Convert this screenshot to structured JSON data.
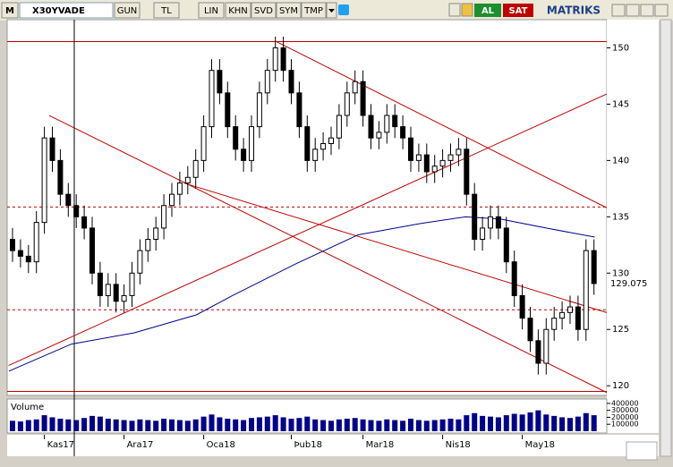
{
  "toolbar": {
    "menu": "M",
    "symbol": "X30YVADE",
    "buttons": [
      "GUN",
      "TL",
      "LIN",
      "KHN",
      "SVD",
      "SYM",
      "TMP"
    ],
    "buy": "AL",
    "sell": "SAT",
    "brand": "MATRIKS"
  },
  "chart_data": {
    "type": "candlestick",
    "candle_color": "#000000",
    "categories": [
      null,
      null,
      null,
      null,
      "Kas17",
      null,
      null,
      null,
      null,
      null,
      null,
      null,
      null,
      null,
      "Ara17",
      null,
      null,
      null,
      null,
      null,
      null,
      null,
      null,
      null,
      "Oca18",
      null,
      null,
      null,
      null,
      null,
      null,
      null,
      null,
      null,
      null,
      "Þub18",
      null,
      null,
      null,
      null,
      null,
      null,
      null,
      null,
      "Mar18",
      null,
      null,
      null,
      null,
      null,
      null,
      null,
      null,
      null,
      "Nis18",
      null,
      null,
      null,
      null,
      null,
      null,
      null,
      null,
      null,
      "May18",
      null,
      null,
      null,
      null,
      null,
      null,
      null,
      null,
      null
    ],
    "open": [
      133,
      132,
      131.5,
      131,
      134.5,
      142,
      140,
      137,
      136,
      135,
      134,
      130,
      128,
      129,
      127.5,
      128,
      130,
      132,
      133,
      134,
      136,
      137,
      138,
      138.5,
      140,
      143,
      148,
      146,
      143,
      141,
      140,
      143,
      146,
      148,
      150,
      148,
      146,
      143,
      140,
      141,
      141.5,
      142,
      144,
      146,
      147,
      144,
      142,
      142.5,
      144,
      143,
      142,
      140,
      140.5,
      139,
      139.5,
      140,
      140.5,
      141,
      137,
      133,
      134,
      135,
      134,
      131,
      128,
      126,
      124,
      122,
      125,
      126,
      126.5,
      127,
      125,
      132
    ],
    "high": [
      134,
      133,
      132.5,
      135.5,
      143,
      143,
      141,
      138,
      137,
      136,
      135,
      131,
      130,
      130,
      129,
      131,
      133,
      134,
      135,
      137,
      138,
      139,
      139.5,
      141,
      144,
      149,
      149,
      147,
      144,
      142,
      144,
      147,
      149,
      151,
      151,
      149,
      147,
      144,
      142,
      142.5,
      143,
      145,
      147,
      148,
      148,
      145,
      143.5,
      145,
      145,
      144,
      143,
      141.5,
      141.5,
      140.5,
      141,
      141.5,
      142,
      142,
      138,
      135,
      136,
      136,
      135,
      132,
      129,
      127,
      125,
      126,
      127,
      127.5,
      128,
      128,
      133,
      133
    ],
    "low": [
      131,
      130.5,
      130,
      130,
      133.5,
      139,
      136,
      135,
      134,
      133,
      129,
      127,
      127,
      126.5,
      126.5,
      127,
      129,
      131,
      132,
      133,
      135,
      136,
      137,
      137.5,
      139,
      142,
      145,
      142,
      140,
      139,
      139,
      142,
      145,
      147,
      147,
      145,
      142,
      139,
      139,
      140,
      140.5,
      141,
      143,
      145,
      143,
      141,
      141,
      141.5,
      142,
      141,
      139,
      139,
      138,
      138,
      138.5,
      139,
      139.5,
      136,
      132,
      132,
      133,
      133,
      130,
      127,
      125,
      123,
      121,
      121,
      124,
      125,
      125.5,
      124,
      124,
      128.075
    ],
    "close": [
      132,
      131.5,
      131,
      134.5,
      142,
      140,
      137,
      136,
      135,
      134,
      130,
      128,
      129,
      127.5,
      128,
      130,
      132,
      133,
      134,
      136,
      137,
      138,
      138.5,
      140,
      143,
      148,
      146,
      143,
      141,
      140,
      143,
      146,
      148,
      150,
      148,
      146,
      143,
      140,
      141,
      141.5,
      142,
      144,
      146,
      147,
      144,
      142,
      142.5,
      144,
      143,
      142,
      140,
      140.5,
      139,
      139.5,
      140,
      140.5,
      141,
      137,
      133,
      134,
      135,
      134,
      131,
      128,
      126,
      124,
      122,
      125,
      126,
      126.5,
      127,
      125,
      132,
      129.075
    ],
    "ylim": [
      119.3,
      152.5
    ],
    "yticks": [
      120,
      125,
      130,
      135,
      140,
      145,
      150
    ],
    "last_price": 129.075,
    "levels": [
      {
        "value": 150.55,
        "style": "solid"
      },
      {
        "value": 135.87,
        "style": "dashed"
      },
      {
        "value": 126.75,
        "style": "dashed"
      },
      {
        "value": 119.5,
        "style": "solid"
      }
    ],
    "level_color": "#c00000",
    "vertical_line": 7.75,
    "trend_lines": [
      {
        "x": [
          33,
          74.6
        ],
        "values": [
          150.6,
          135.8
        ]
      },
      {
        "x": [
          4.6,
          74.6
        ],
        "values": [
          144,
          119.4
        ]
      },
      {
        "x": [
          21.5,
          74.6
        ],
        "values": [
          138,
          126.5
        ]
      },
      {
        "x": [
          -0.5,
          74.6
        ],
        "values": [
          121.8,
          145.9
        ]
      }
    ],
    "moving_average": {
      "color": "#00008b",
      "x": [
        -0.45,
        7.4,
        15.3,
        23.1,
        27.6,
        35.5,
        43.4,
        51.2,
        56.9,
        61.3,
        67,
        73.1
      ],
      "values": [
        121.3,
        123.7,
        124.7,
        126.3,
        128,
        130.8,
        133.4,
        134.4,
        135,
        134.8,
        134,
        133.2
      ]
    },
    "volume": {
      "title": "Volume",
      "color": "#00008b",
      "ylim": [
        0,
        450000
      ],
      "yticks": [
        100000,
        200000,
        300000,
        400000
      ],
      "values": [
        150000,
        140000,
        160000,
        170000,
        230000,
        200000,
        180000,
        170000,
        160000,
        190000,
        220000,
        210000,
        180000,
        170000,
        160000,
        150000,
        170000,
        160000,
        150000,
        180000,
        170000,
        160000,
        150000,
        170000,
        210000,
        240000,
        200000,
        180000,
        170000,
        160000,
        190000,
        200000,
        210000,
        230000,
        200000,
        180000,
        190000,
        210000,
        170000,
        160000,
        150000,
        170000,
        180000,
        190000,
        170000,
        160000,
        150000,
        170000,
        160000,
        150000,
        180000,
        160000,
        150000,
        160000,
        170000,
        180000,
        170000,
        230000,
        260000,
        220000,
        210000,
        200000,
        230000,
        250000,
        240000,
        270000,
        300000,
        240000,
        220000,
        200000,
        190000,
        210000,
        260000,
        230000
      ]
    }
  }
}
